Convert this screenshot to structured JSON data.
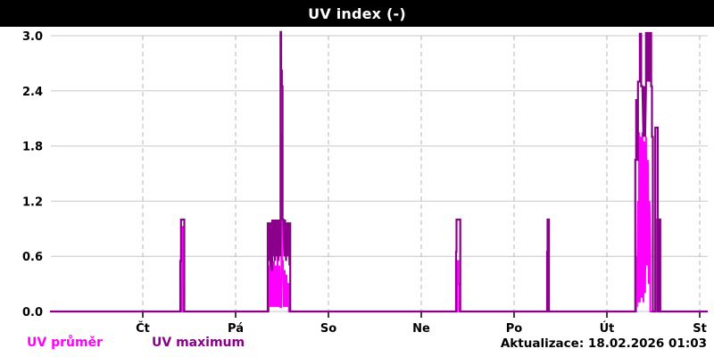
{
  "header": {
    "title": "UV index (-)"
  },
  "footer": {
    "update_label": "Aktualizace: 18.02.2026 01:03"
  },
  "legend": {
    "items": [
      {
        "label": "UV průměr",
        "color": "#FF00FF"
      },
      {
        "label": "UV maximum",
        "color": "#8B008B"
      }
    ]
  },
  "colors": {
    "avg_line": "#FF00FF",
    "max_line": "#8B008B",
    "grid": "#C8C8C8",
    "day_grid": "#B4B4B4",
    "tick": "#000000",
    "title_bg": "#000000",
    "title_fg": "#FFFFFF",
    "background": "#FFFFFF"
  },
  "chart_data": {
    "type": "line",
    "title": "UV index (-)",
    "xlabel": "",
    "ylabel": "UV index (-)",
    "ylim": [
      0,
      3
    ],
    "xlim": [
      0,
      7.09
    ],
    "grid": true,
    "legend_position": "bottom-left",
    "yticks": [
      0.0,
      0.6,
      1.2,
      1.8,
      2.4,
      3.0
    ],
    "ytick_labels": [
      "0.0",
      "0.6",
      "1.2",
      "1.8",
      "2.4",
      "3.0"
    ],
    "xticks": [
      1,
      2,
      3,
      4,
      5,
      6,
      7
    ],
    "xtick_labels": [
      "Čt",
      "Pá",
      "So",
      "Ne",
      "Po",
      "Út",
      "St"
    ],
    "x_unit": "days (Čt=1 ... St=7)",
    "series": [
      {
        "id": "uv-prumer",
        "name": "UV průměr",
        "color": "#FF00FF",
        "width": 2,
        "points": [
          [
            0,
            0
          ],
          [
            1.418,
            0
          ],
          [
            1.418,
            0.3
          ],
          [
            1.424,
            0.3
          ],
          [
            1.424,
            0.92
          ],
          [
            1.43,
            0.92
          ],
          [
            1.43,
            0.35
          ],
          [
            1.438,
            0.35
          ],
          [
            1.438,
            0
          ],
          [
            2.356,
            0
          ],
          [
            2.356,
            0.5
          ],
          [
            2.365,
            0.05
          ],
          [
            2.375,
            0.55
          ],
          [
            2.385,
            0.05
          ],
          [
            2.394,
            0.5
          ],
          [
            2.404,
            0.05
          ],
          [
            2.413,
            0.55
          ],
          [
            2.423,
            0.05
          ],
          [
            2.433,
            0.5
          ],
          [
            2.442,
            0.05
          ],
          [
            2.452,
            0.6
          ],
          [
            2.462,
            0.05
          ],
          [
            2.471,
            0.5
          ],
          [
            2.481,
            0.05
          ],
          [
            2.493,
            0.05
          ],
          [
            2.493,
            1.93
          ],
          [
            2.499,
            1.93
          ],
          [
            2.499,
            0.55
          ],
          [
            2.51,
            0.55
          ],
          [
            2.519,
            0.05
          ],
          [
            2.529,
            0.45
          ],
          [
            2.538,
            0.05
          ],
          [
            2.548,
            0.4
          ],
          [
            2.558,
            0.05
          ],
          [
            2.567,
            0.3
          ],
          [
            2.574,
            0.3
          ],
          [
            2.574,
            0
          ],
          [
            4.385,
            0
          ],
          [
            4.385,
            0.55
          ],
          [
            4.398,
            0.55
          ],
          [
            4.398,
            0.3
          ],
          [
            4.408,
            0.3
          ],
          [
            4.408,
            0
          ],
          [
            6.315,
            0
          ],
          [
            6.315,
            0.6
          ],
          [
            6.325,
            0.05
          ],
          [
            6.335,
            1.2
          ],
          [
            6.345,
            0.1
          ],
          [
            6.345,
            1.95
          ],
          [
            6.355,
            0.1
          ],
          [
            6.364,
            1.9
          ],
          [
            6.374,
            0.15
          ],
          [
            6.383,
            1.95
          ],
          [
            6.393,
            0.1
          ],
          [
            6.402,
            1.85
          ],
          [
            6.412,
            0.2
          ],
          [
            6.421,
            1.9
          ],
          [
            6.431,
            0.5
          ],
          [
            6.441,
            1.65
          ],
          [
            6.45,
            0.3
          ],
          [
            6.46,
            1.2
          ],
          [
            6.467,
            0.6
          ],
          [
            6.467,
            0
          ],
          [
            6.529,
            0
          ],
          [
            6.529,
            1.0
          ],
          [
            6.538,
            1.0
          ],
          [
            6.538,
            0
          ],
          [
            7.087,
            0
          ]
        ]
      },
      {
        "id": "uv-maximum",
        "name": "UV maximum",
        "color": "#8B008B",
        "width": 2.2,
        "points": [
          [
            0,
            0
          ],
          [
            1.404,
            0
          ],
          [
            1.404,
            0.55
          ],
          [
            1.412,
            0.55
          ],
          [
            1.412,
            1.0
          ],
          [
            1.447,
            1.0
          ],
          [
            1.447,
            0
          ],
          [
            2.346,
            0
          ],
          [
            2.346,
            0.97
          ],
          [
            2.356,
            0.55
          ],
          [
            2.365,
            0.97
          ],
          [
            2.375,
            0.5
          ],
          [
            2.385,
            0.97
          ],
          [
            2.385,
            0.45
          ],
          [
            2.394,
            0.45
          ],
          [
            2.394,
            1.0
          ],
          [
            2.404,
            0.6
          ],
          [
            2.413,
            1.0
          ],
          [
            2.423,
            0.55
          ],
          [
            2.433,
            1.0
          ],
          [
            2.442,
            0.6
          ],
          [
            2.452,
            1.0
          ],
          [
            2.462,
            0.55
          ],
          [
            2.471,
            1.0
          ],
          [
            2.481,
            0.6
          ],
          [
            2.484,
            1.0
          ],
          [
            2.484,
            3.04
          ],
          [
            2.49,
            3.04
          ],
          [
            2.49,
            2.62
          ],
          [
            2.498,
            2.62
          ],
          [
            2.498,
            2.45
          ],
          [
            2.506,
            2.45
          ],
          [
            2.506,
            1.0
          ],
          [
            2.515,
            1.0
          ],
          [
            2.524,
            0.6
          ],
          [
            2.533,
            1.0
          ],
          [
            2.543,
            0.55
          ],
          [
            2.552,
            0.97
          ],
          [
            2.562,
            0.6
          ],
          [
            2.571,
            0.97
          ],
          [
            2.581,
            0.5
          ],
          [
            2.588,
            0.97
          ],
          [
            2.588,
            0
          ],
          [
            4.375,
            0
          ],
          [
            4.375,
            0.65
          ],
          [
            4.38,
            0.65
          ],
          [
            4.38,
            1.0
          ],
          [
            4.42,
            1.0
          ],
          [
            4.42,
            0
          ],
          [
            5.356,
            0
          ],
          [
            5.356,
            0.65
          ],
          [
            5.361,
            0.65
          ],
          [
            5.361,
            1.0
          ],
          [
            5.376,
            1.0
          ],
          [
            5.376,
            0
          ],
          [
            6.306,
            0
          ],
          [
            6.306,
            1.65
          ],
          [
            6.315,
            1.65
          ],
          [
            6.315,
            2.3
          ],
          [
            6.325,
            2.3
          ],
          [
            6.325,
            1.65
          ],
          [
            6.335,
            1.65
          ],
          [
            6.335,
            2.5
          ],
          [
            6.345,
            2.5
          ],
          [
            6.355,
            2.5
          ],
          [
            6.355,
            3.02
          ],
          [
            6.369,
            3.02
          ],
          [
            6.369,
            2.45
          ],
          [
            6.383,
            2.45
          ],
          [
            6.393,
            1.9
          ],
          [
            6.402,
            2.45
          ],
          [
            6.412,
            1.9
          ],
          [
            6.421,
            2.45
          ],
          [
            6.421,
            3.04
          ],
          [
            6.431,
            2.5
          ],
          [
            6.441,
            3.04
          ],
          [
            6.45,
            2.5
          ],
          [
            6.46,
            3.04
          ],
          [
            6.469,
            2.5
          ],
          [
            6.477,
            3.04
          ],
          [
            6.477,
            2.45
          ],
          [
            6.486,
            2.45
          ],
          [
            6.486,
            1.9
          ],
          [
            6.495,
            1.9
          ],
          [
            6.495,
            0
          ],
          [
            6.521,
            0
          ],
          [
            6.521,
            2.0
          ],
          [
            6.548,
            2.0
          ],
          [
            6.548,
            0
          ],
          [
            6.565,
            0
          ],
          [
            6.565,
            1.0
          ],
          [
            6.575,
            1.0
          ],
          [
            6.575,
            0
          ],
          [
            7.087,
            0
          ]
        ]
      }
    ]
  }
}
